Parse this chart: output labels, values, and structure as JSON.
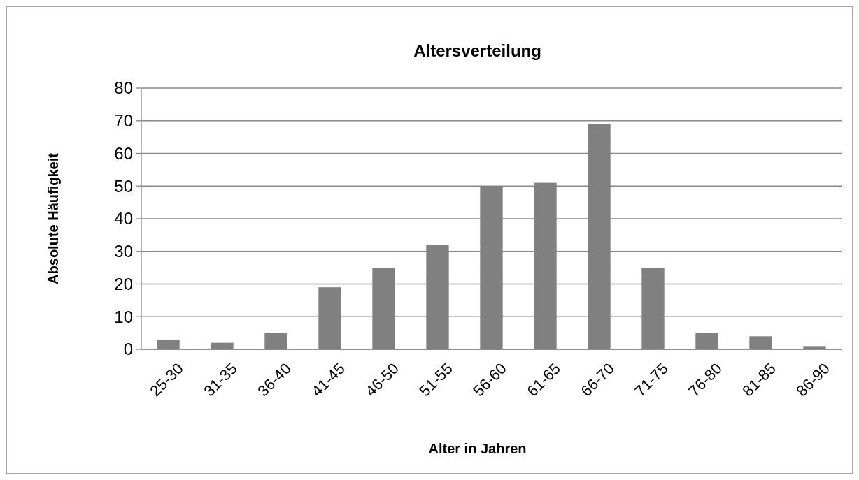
{
  "chart_data": {
    "type": "bar",
    "title": "Altersverteilung",
    "xlabel": "Alter in Jahren",
    "ylabel": "Absolute Häufigkeit",
    "categories": [
      "25-30",
      "31-35",
      "36-40",
      "41-45",
      "46-50",
      "51-55",
      "56-60",
      "61-65",
      "66-70",
      "71-75",
      "76-80",
      "81-85",
      "86-90"
    ],
    "values": [
      3,
      2,
      5,
      19,
      25,
      32,
      50,
      51,
      69,
      25,
      5,
      4,
      1
    ],
    "color": "#808080",
    "ylim": [
      0,
      80
    ],
    "yticks": [
      0,
      10,
      20,
      30,
      40,
      50,
      60,
      70,
      80
    ],
    "grid": "y"
  }
}
